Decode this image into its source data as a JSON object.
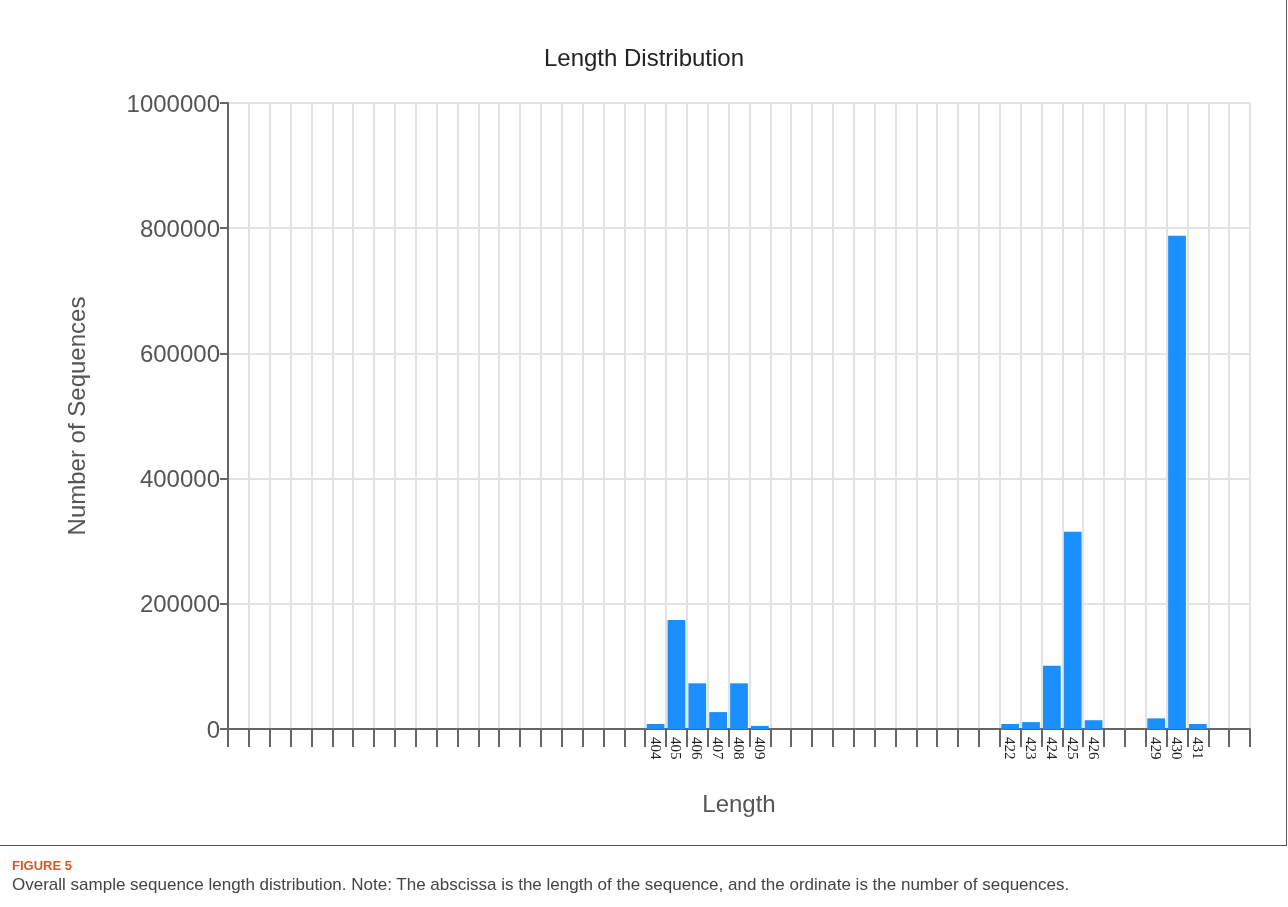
{
  "chart_data": {
    "type": "bar",
    "title": "Length Distribution",
    "xlabel": "Length",
    "ylabel": "Number of Sequences",
    "categories": [
      null,
      null,
      null,
      null,
      null,
      null,
      null,
      null,
      null,
      null,
      null,
      null,
      null,
      null,
      null,
      null,
      null,
      null,
      null,
      null,
      "404",
      "405",
      "406",
      "407",
      "408",
      "409",
      null,
      null,
      null,
      null,
      null,
      null,
      null,
      null,
      null,
      null,
      null,
      "422",
      "423",
      "424",
      "425",
      "426",
      null,
      null,
      "429",
      "430",
      "431",
      null,
      null
    ],
    "values": [
      0,
      0,
      0,
      0,
      0,
      0,
      0,
      0,
      0,
      0,
      0,
      0,
      0,
      0,
      0,
      0,
      0,
      0,
      0,
      0,
      8000,
      174000,
      73000,
      27000,
      73000,
      5000,
      0,
      0,
      0,
      0,
      0,
      0,
      0,
      0,
      0,
      0,
      0,
      8000,
      11000,
      101000,
      315000,
      14000,
      0,
      0,
      17000,
      788000,
      8000,
      0,
      0
    ],
    "color": "#1a8fff",
    "ylim": [
      0,
      1000000
    ],
    "yticks": [
      0,
      200000,
      400000,
      600000,
      800000,
      1000000
    ],
    "grid": true,
    "annotations": [
      "FIGURE 5",
      "Overall sample sequence length distribution. Note: The abscissa is the length of the sequence, and the ordinate is the number of sequences."
    ]
  }
}
